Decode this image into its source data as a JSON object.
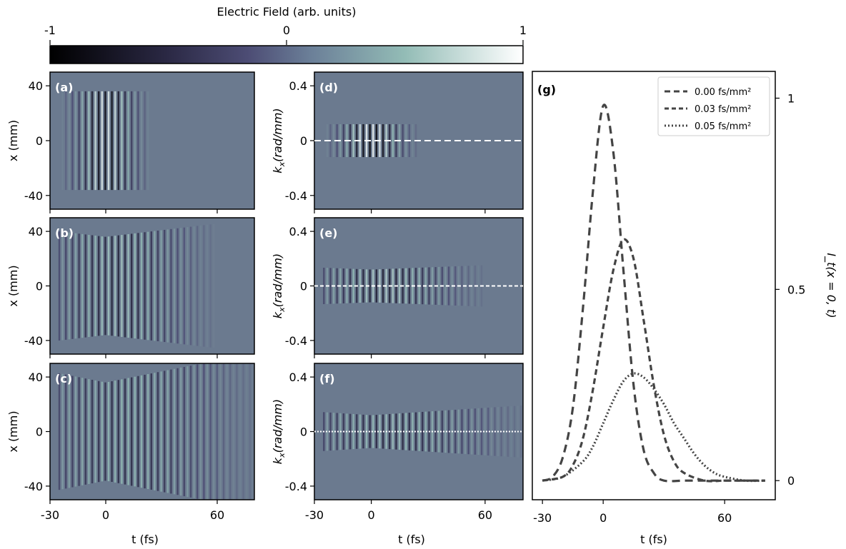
{
  "colorbar": {
    "label": "Electric Field (arb. units)",
    "ticks": [
      "-1",
      "0",
      "1"
    ],
    "colors": [
      "#000000",
      "#4b4a74",
      "#6b7b99",
      "#8fb7b3",
      "#ffffff"
    ]
  },
  "panels": {
    "a": "(a)",
    "b": "(b)",
    "c": "(c)",
    "d": "(d)",
    "e": "(e)",
    "f": "(f)",
    "g": "(g)"
  },
  "axes": {
    "x_label_left": "x (mm)",
    "k_label_main": "k",
    "k_label_sub": "x",
    "k_label_rest": "(rad/mm)",
    "t_label": "t (fs)",
    "g_ylabel": "I_t(x = 0, t)",
    "x_ticks": [
      "-30",
      "0",
      "60"
    ],
    "x_tick_values": [
      -30,
      0,
      60
    ],
    "xmm_ticks": [
      "40",
      "0",
      "-40"
    ],
    "xmm_tick_values": [
      40,
      0,
      -40
    ],
    "k_ticks": [
      "0.4",
      "0",
      "-0.4"
    ],
    "k_tick_values": [
      0.4,
      0,
      -0.4
    ],
    "g_yticks": [
      "1",
      "0.5",
      "0"
    ],
    "g_ytick_values": [
      1,
      0.5,
      0
    ]
  },
  "heatmaps": {
    "background_color": "#6b7a8f",
    "t_range": [
      -30,
      80
    ],
    "x_range": [
      -50,
      50
    ],
    "k_range": [
      -0.5,
      0.5
    ],
    "dispersion_fs_per_mm2": [
      0.0,
      0.03,
      0.05
    ],
    "reference_lines": [
      "dashed",
      "dashed",
      "dotted"
    ]
  },
  "legend": {
    "items": [
      "0.00 fs/mm²",
      "0.03 fs/mm²",
      "0.05 fs/mm²"
    ]
  },
  "chart_data": {
    "type": "line",
    "xlabel": "t (fs)",
    "ylabel": "I_t(x = 0, t)",
    "xlim": [
      -35,
      85
    ],
    "ylim": [
      -0.05,
      1.07
    ],
    "x_ticks": [
      -30,
      0,
      60
    ],
    "y_ticks": [
      0,
      0.5,
      1
    ],
    "legend_position": "top-right",
    "series": [
      {
        "name": "0.00 fs/mm²",
        "style": "dashed",
        "color": "#444444",
        "x": [
          -30,
          -25,
          -20,
          -15,
          -10,
          -5,
          0,
          5,
          10,
          15,
          20,
          25,
          30,
          40,
          50,
          60,
          70,
          80
        ],
        "y": [
          0.0,
          0.01,
          0.06,
          0.19,
          0.45,
          0.76,
          0.98,
          0.86,
          0.55,
          0.25,
          0.08,
          0.02,
          0.0,
          0.0,
          0.0,
          0.0,
          0.0,
          0.0
        ]
      },
      {
        "name": "0.03 fs/mm²",
        "style": "dashed",
        "color": "#444444",
        "x": [
          -30,
          -20,
          -15,
          -10,
          -5,
          0,
          5,
          10,
          15,
          20,
          25,
          30,
          35,
          40,
          50,
          60,
          70,
          80
        ],
        "y": [
          0.0,
          0.01,
          0.04,
          0.11,
          0.24,
          0.4,
          0.55,
          0.63,
          0.58,
          0.42,
          0.25,
          0.12,
          0.05,
          0.02,
          0.0,
          0.0,
          0.0,
          0.0
        ]
      },
      {
        "name": "0.05 fs/mm²",
        "style": "dotted",
        "color": "#444444",
        "x": [
          -30,
          -20,
          -10,
          -5,
          0,
          5,
          10,
          15,
          20,
          25,
          30,
          35,
          40,
          45,
          50,
          55,
          60,
          70,
          80
        ],
        "y": [
          0.0,
          0.01,
          0.05,
          0.09,
          0.15,
          0.21,
          0.26,
          0.28,
          0.27,
          0.24,
          0.2,
          0.15,
          0.11,
          0.07,
          0.04,
          0.02,
          0.01,
          0.0,
          0.0
        ]
      }
    ]
  }
}
